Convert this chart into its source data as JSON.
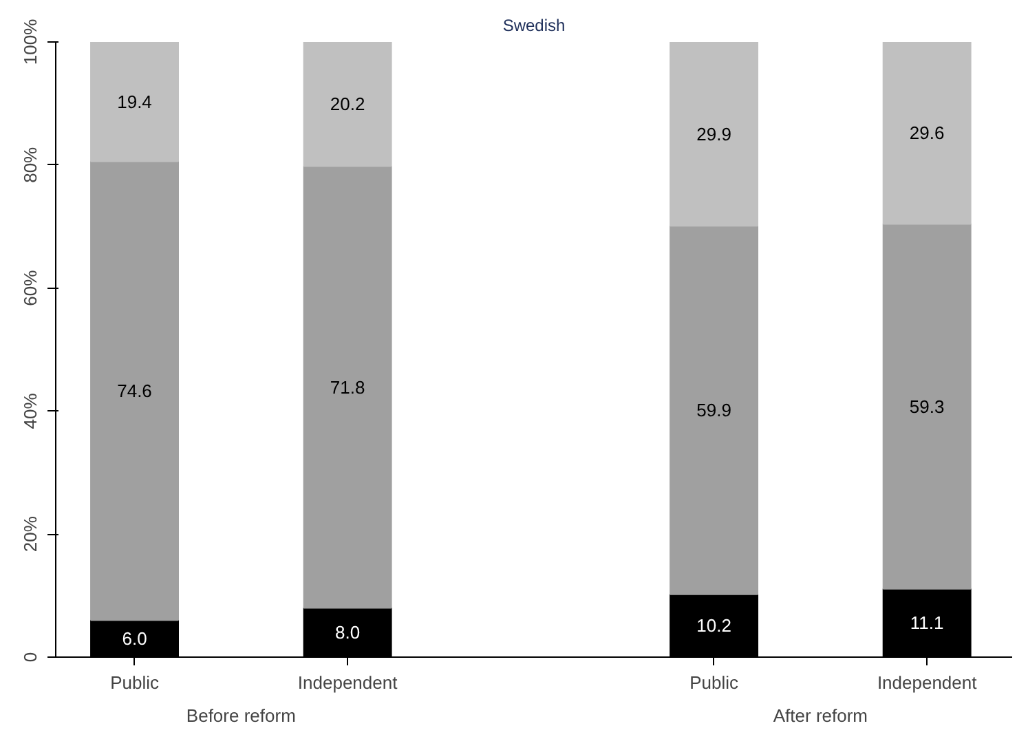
{
  "chart_data": {
    "type": "bar",
    "title": "Swedish",
    "stacked": true,
    "categories": [
      "Public",
      "Independent",
      "Public",
      "Independent"
    ],
    "series": [
      {
        "color": "#000000",
        "values": [
          6.0,
          8.0,
          10.2,
          11.1
        ],
        "value_labels": [
          "6.0",
          "8.0",
          "10.2",
          "11.1"
        ]
      },
      {
        "color": "#a0a0a0",
        "values": [
          74.6,
          71.8,
          59.9,
          59.3
        ],
        "value_labels": [
          "74.6",
          "71.8",
          "59.9",
          "59.3"
        ]
      },
      {
        "color": "#c0c0c0",
        "values": [
          19.4,
          20.2,
          29.9,
          29.6
        ],
        "value_labels": [
          "19.4",
          "20.2",
          "29.9",
          "29.6"
        ]
      }
    ],
    "ylim": [
      0,
      100
    ],
    "yticks": [
      {
        "value": 0,
        "label": "0"
      },
      {
        "value": 20,
        "label": "20%"
      },
      {
        "value": 40,
        "label": "40%"
      },
      {
        "value": 60,
        "label": "60%"
      },
      {
        "value": 80,
        "label": "80%"
      },
      {
        "value": 100,
        "label": "100%"
      }
    ],
    "annotations": [
      "Before reform",
      "After reform"
    ],
    "grid": false
  }
}
